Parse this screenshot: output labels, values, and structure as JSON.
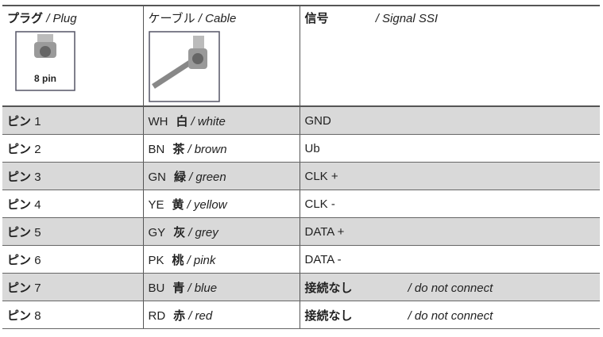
{
  "header": {
    "plug": {
      "ja": "プラグ",
      "en": "/ Plug",
      "image_label": "8 pin"
    },
    "cable": {
      "ja": "ケーブル",
      "en": "/ Cable"
    },
    "signal": {
      "ja": "信号",
      "en": "/ Signal SSI"
    }
  },
  "rows": [
    {
      "pin": "ピン",
      "number": "1",
      "code": "WH",
      "color_ja": "白",
      "color_en": "/ white",
      "signal": "GND"
    },
    {
      "pin": "ピン",
      "number": "2",
      "code": "BN",
      "color_ja": "茶",
      "color_en": "/ brown",
      "signal": "Ub"
    },
    {
      "pin": "ピン",
      "number": "3",
      "code": "GN",
      "color_ja": "緑",
      "color_en": "/ green",
      "signal": "CLK +"
    },
    {
      "pin": "ピン",
      "number": "4",
      "code": "YE",
      "color_ja": "黄",
      "color_en": "/ yellow",
      "signal": "CLK -"
    },
    {
      "pin": "ピン",
      "number": "5",
      "code": "GY",
      "color_ja": "灰",
      "color_en": "/ grey",
      "signal": "DATA +"
    },
    {
      "pin": "ピン",
      "number": "6",
      "code": "PK",
      "color_ja": "桃",
      "color_en": "/ pink",
      "signal": "DATA -"
    },
    {
      "pin": "ピン",
      "number": "7",
      "code": "BU",
      "color_ja": "青",
      "color_en": "/ blue",
      "signal": "接続なし",
      "signal_note": "/ do not connect"
    },
    {
      "pin": "ピン",
      "number": "8",
      "code": "RD",
      "color_ja": "赤",
      "color_en": "/ red",
      "signal": "接続なし",
      "signal_note": "/ do not connect"
    }
  ]
}
